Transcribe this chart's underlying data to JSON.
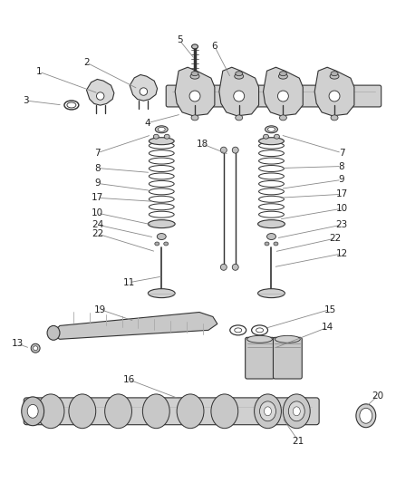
{
  "bg_color": "#ffffff",
  "fig_width": 4.37,
  "fig_height": 5.33,
  "dpi": 100,
  "line_color": "#333333",
  "text_color": "#222222",
  "label_fontsize": 7.5,
  "callout_line_color": "#888888",
  "callout_lw": 0.6,
  "parts_line_lw": 0.8,
  "parts_fill": "#e8e8e8",
  "parts_ec": "#333333"
}
